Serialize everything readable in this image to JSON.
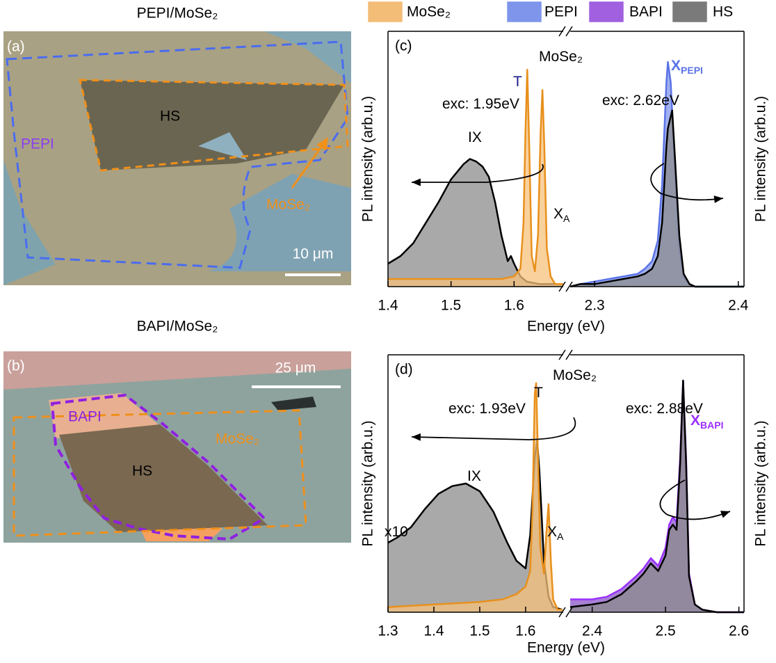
{
  "legend": [
    {
      "name": "MoSe₂",
      "color": "#f3bd78"
    },
    {
      "name": "PEPI",
      "color": "#7f95ec"
    },
    {
      "name": "BAPI",
      "color": "#a060e0"
    },
    {
      "name": "HS",
      "color": "#7a7a7a"
    }
  ],
  "panel_a": {
    "title": "PEPI/MoSe₂",
    "label": "(a)",
    "hs": "HS",
    "pepi": "PEPI",
    "mose2": "MoSe₂",
    "scale_bar": "10 μm"
  },
  "panel_b": {
    "title": "BAPI/MoSe₂",
    "label": "(b)",
    "hs": "HS",
    "bapi": "BAPI",
    "mose2": "MoSe₂",
    "scale_bar": "25 μm"
  },
  "chart_data": [
    {
      "type": "line",
      "panel_label": "(c)",
      "xlabel": "Energy (eV)",
      "ylabel": "PL intensity (arb.u.)",
      "y2label": "PL intensity (arb.u.)",
      "xlim": [
        [
          1.4,
          1.678
        ],
        [
          2.283,
          2.404
        ]
      ],
      "xticks": [
        1.4,
        1.5,
        1.6,
        2.3,
        2.4
      ],
      "ylim": [
        0,
        1
      ],
      "series": [
        {
          "name": "HS",
          "color": "#000000",
          "fill": "#8c8c8c",
          "x": [
            1.4,
            1.42,
            1.44,
            1.46,
            1.48,
            1.5,
            1.51,
            1.52,
            1.53,
            1.54,
            1.55,
            1.56,
            1.57,
            1.58,
            1.59,
            1.595,
            1.6,
            1.61,
            1.62,
            1.64,
            1.66,
            1.678
          ],
          "values": [
            0.09,
            0.12,
            0.17,
            0.25,
            0.33,
            0.42,
            0.45,
            0.48,
            0.5,
            0.49,
            0.47,
            0.43,
            0.33,
            0.2,
            0.1,
            0.12,
            0.09,
            0.04,
            0.02,
            0.01,
            0.01,
            0.01
          ]
        },
        {
          "name": "MoSe₂",
          "color": "#e8901c",
          "fill": "#f7c27c",
          "x": [
            1.4,
            1.45,
            1.5,
            1.55,
            1.58,
            1.6,
            1.61,
            1.615,
            1.618,
            1.621,
            1.624,
            1.628,
            1.633,
            1.638,
            1.642,
            1.645,
            1.648,
            1.652,
            1.658,
            1.665,
            1.678
          ],
          "values": [
            0.03,
            0.03,
            0.03,
            0.03,
            0.03,
            0.04,
            0.07,
            0.25,
            0.6,
            0.85,
            0.55,
            0.12,
            0.06,
            0.2,
            0.6,
            0.77,
            0.55,
            0.15,
            0.04,
            0.01,
            0.01
          ]
        },
        {
          "name": "PEPI",
          "color": "#5b73e6",
          "fill": "#8195ea",
          "x": [
            2.283,
            2.29,
            2.3,
            2.31,
            2.32,
            2.33,
            2.335,
            2.34,
            2.344,
            2.347,
            2.35,
            2.351,
            2.353,
            2.356,
            2.359,
            2.362,
            2.366,
            2.37,
            2.38,
            2.39,
            2.404
          ],
          "values": [
            0.0,
            0.01,
            0.02,
            0.03,
            0.04,
            0.05,
            0.07,
            0.1,
            0.18,
            0.4,
            0.8,
            0.88,
            0.8,
            0.45,
            0.15,
            0.04,
            0.01,
            0,
            0,
            0,
            0
          ]
        },
        {
          "name": "HS",
          "color": "#000000",
          "fill": "#8c8c8c",
          "x": [
            2.283,
            2.29,
            2.3,
            2.31,
            2.32,
            2.33,
            2.335,
            2.34,
            2.344,
            2.347,
            2.35,
            2.351,
            2.354,
            2.356,
            2.359,
            2.362,
            2.366,
            2.37,
            2.38,
            2.39,
            2.404
          ],
          "values": [
            0,
            0.01,
            0.01,
            0.02,
            0.03,
            0.04,
            0.05,
            0.07,
            0.12,
            0.25,
            0.55,
            0.62,
            0.69,
            0.5,
            0.2,
            0.05,
            0.01,
            0,
            0,
            0,
            0
          ]
        }
      ],
      "annotations": [
        {
          "text": "MoSe₂",
          "color": "#000000"
        },
        {
          "text": "T",
          "color": "#1a1a8c"
        },
        {
          "text": "exc: 1.95eV",
          "color": "#000000"
        },
        {
          "text": "exc: 2.62eV",
          "color": "#000000"
        },
        {
          "text": "IX",
          "color": "#000000"
        },
        {
          "text": "X",
          "sub": "A",
          "color": "#000000"
        },
        {
          "text": "X",
          "sub": "PEPI",
          "color": "#5b73e6"
        }
      ]
    },
    {
      "type": "line",
      "panel_label": "(d)",
      "xlabel": "Energy (eV)",
      "ylabel": "PL intensity (arb.u.)",
      "y2label": "PL intensity (arb.u.)",
      "xlim": [
        [
          1.3,
          1.682
        ],
        [
          2.37,
          2.607
        ]
      ],
      "xticks": [
        1.3,
        1.4,
        1.5,
        1.6,
        2.4,
        2.5,
        2.6
      ],
      "ylim": [
        0,
        1
      ],
      "series": [
        {
          "name": "HS",
          "color": "#000000",
          "fill": "#8c8c8c",
          "x": [
            1.3,
            1.32,
            1.35,
            1.38,
            1.41,
            1.44,
            1.47,
            1.5,
            1.53,
            1.56,
            1.58,
            1.6,
            1.61,
            1.62,
            1.625,
            1.63,
            1.64,
            1.65,
            1.66,
            1.68
          ],
          "values": [
            0.27,
            0.29,
            0.33,
            0.4,
            0.46,
            0.49,
            0.5,
            0.47,
            0.39,
            0.27,
            0.2,
            0.17,
            0.3,
            0.6,
            0.67,
            0.55,
            0.2,
            0.06,
            0.02,
            0.01
          ]
        },
        {
          "name": "MoSe₂",
          "color": "#e8901c",
          "fill": "#f7c27c",
          "x": [
            1.3,
            1.4,
            1.5,
            1.55,
            1.58,
            1.6,
            1.61,
            1.615,
            1.62,
            1.623,
            1.627,
            1.632,
            1.64,
            1.645,
            1.65,
            1.655,
            1.66,
            1.67,
            1.68
          ],
          "values": [
            0.02,
            0.03,
            0.04,
            0.05,
            0.07,
            0.1,
            0.16,
            0.4,
            0.85,
            0.89,
            0.6,
            0.25,
            0.15,
            0.3,
            0.42,
            0.2,
            0.05,
            0.01,
            0.01
          ]
        },
        {
          "name": "BAPI",
          "color": "#9b30ff",
          "fill": "#8a55c8",
          "x": [
            2.37,
            2.4,
            2.42,
            2.44,
            2.46,
            2.47,
            2.48,
            2.49,
            2.5,
            2.505,
            2.51,
            2.515,
            2.52,
            2.524,
            2.528,
            2.532,
            2.54,
            2.55,
            2.57,
            2.607
          ],
          "values": [
            0.05,
            0.05,
            0.06,
            0.09,
            0.14,
            0.17,
            0.21,
            0.18,
            0.25,
            0.34,
            0.37,
            0.35,
            0.6,
            0.9,
            0.6,
            0.15,
            0.03,
            0.01,
            0,
            0
          ]
        },
        {
          "name": "HS",
          "color": "#000000",
          "fill": "#8c8c8c",
          "x": [
            2.37,
            2.4,
            2.42,
            2.44,
            2.46,
            2.47,
            2.48,
            2.49,
            2.5,
            2.505,
            2.51,
            2.515,
            2.52,
            2.524,
            2.528,
            2.532,
            2.54,
            2.55,
            2.57,
            2.607
          ],
          "values": [
            0.02,
            0.03,
            0.04,
            0.07,
            0.12,
            0.15,
            0.19,
            0.16,
            0.22,
            0.32,
            0.34,
            0.32,
            0.58,
            0.9,
            0.58,
            0.14,
            0.03,
            0.01,
            0,
            0
          ]
        }
      ],
      "annotations": [
        {
          "text": "MoSe₂",
          "color": "#000000"
        },
        {
          "text": "T",
          "color": "#000000"
        },
        {
          "text": "exc: 1.93eV",
          "color": "#000000"
        },
        {
          "text": "exc: 2.88eV",
          "color": "#000000"
        },
        {
          "text": "IX",
          "color": "#000000"
        },
        {
          "text": "x10",
          "color": "#000000"
        },
        {
          "text": "X",
          "sub": "A",
          "color": "#000000"
        },
        {
          "text": "X",
          "sub": "BAPI",
          "color": "#9b30ff"
        }
      ]
    }
  ]
}
